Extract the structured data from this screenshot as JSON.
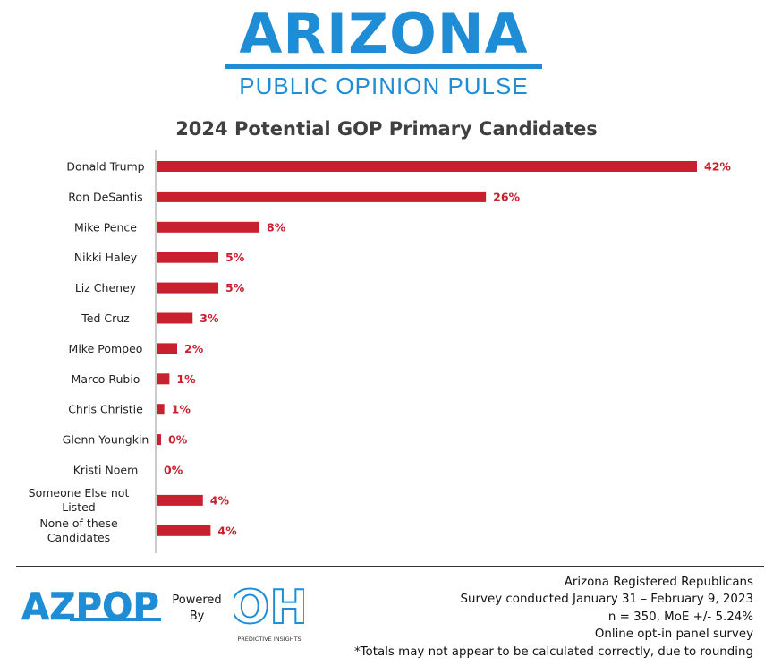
{
  "header": {
    "brand_title": "ARIZONA",
    "brand_subtitle": "PUBLIC OPINION PULSE"
  },
  "chart_data": {
    "type": "bar",
    "orientation": "horizontal",
    "title": "2024 Potential GOP Primary Candidates",
    "categories": [
      "Donald Trump",
      "Ron DeSantis",
      "Mike Pence",
      "Nikki Haley",
      "Liz Cheney",
      "Ted Cruz",
      "Mike Pompeo",
      "Marco Rubio",
      "Chris Christie",
      "Glenn Youngkin",
      "Kristi Noem",
      "Someone Else not Listed",
      "None of these Candidates"
    ],
    "values": [
      42,
      26,
      8,
      5,
      5,
      3,
      2,
      1,
      1,
      0,
      0,
      4,
      4
    ],
    "value_labels": [
      "42%",
      "26%",
      "8%",
      "5%",
      "5%",
      "3%",
      "2%",
      "1%",
      "1%",
      "0%",
      "0%",
      "4%",
      "4%"
    ],
    "bar_widths_pct": [
      42.0,
      25.6,
      8.0,
      4.8,
      4.8,
      2.8,
      1.6,
      1.0,
      0.6,
      0.35,
      0,
      3.6,
      4.2
    ],
    "xlim": [
      0,
      42
    ],
    "xlabel": "",
    "ylabel": "",
    "grid": false,
    "legend": "none",
    "bar_color": "#c8202f"
  },
  "footer": {
    "logo_text": "AZPOP",
    "powered_by_line1": "Powered",
    "powered_by_line2": "By",
    "partner_logo_text": "OH",
    "partner_caption": "PREDICTIVE INSIGHTS",
    "notes": [
      "Arizona Registered Republicans",
      "Survey conducted January 31 – February 9, 2023",
      "n = 350, MoE +/- 5.24%",
      "Online opt-in panel survey",
      "*Totals may not appear to be calculated correctly, due to rounding"
    ]
  },
  "colors": {
    "brand_blue": "#1f8dd6",
    "bar_red": "#c8202f"
  }
}
